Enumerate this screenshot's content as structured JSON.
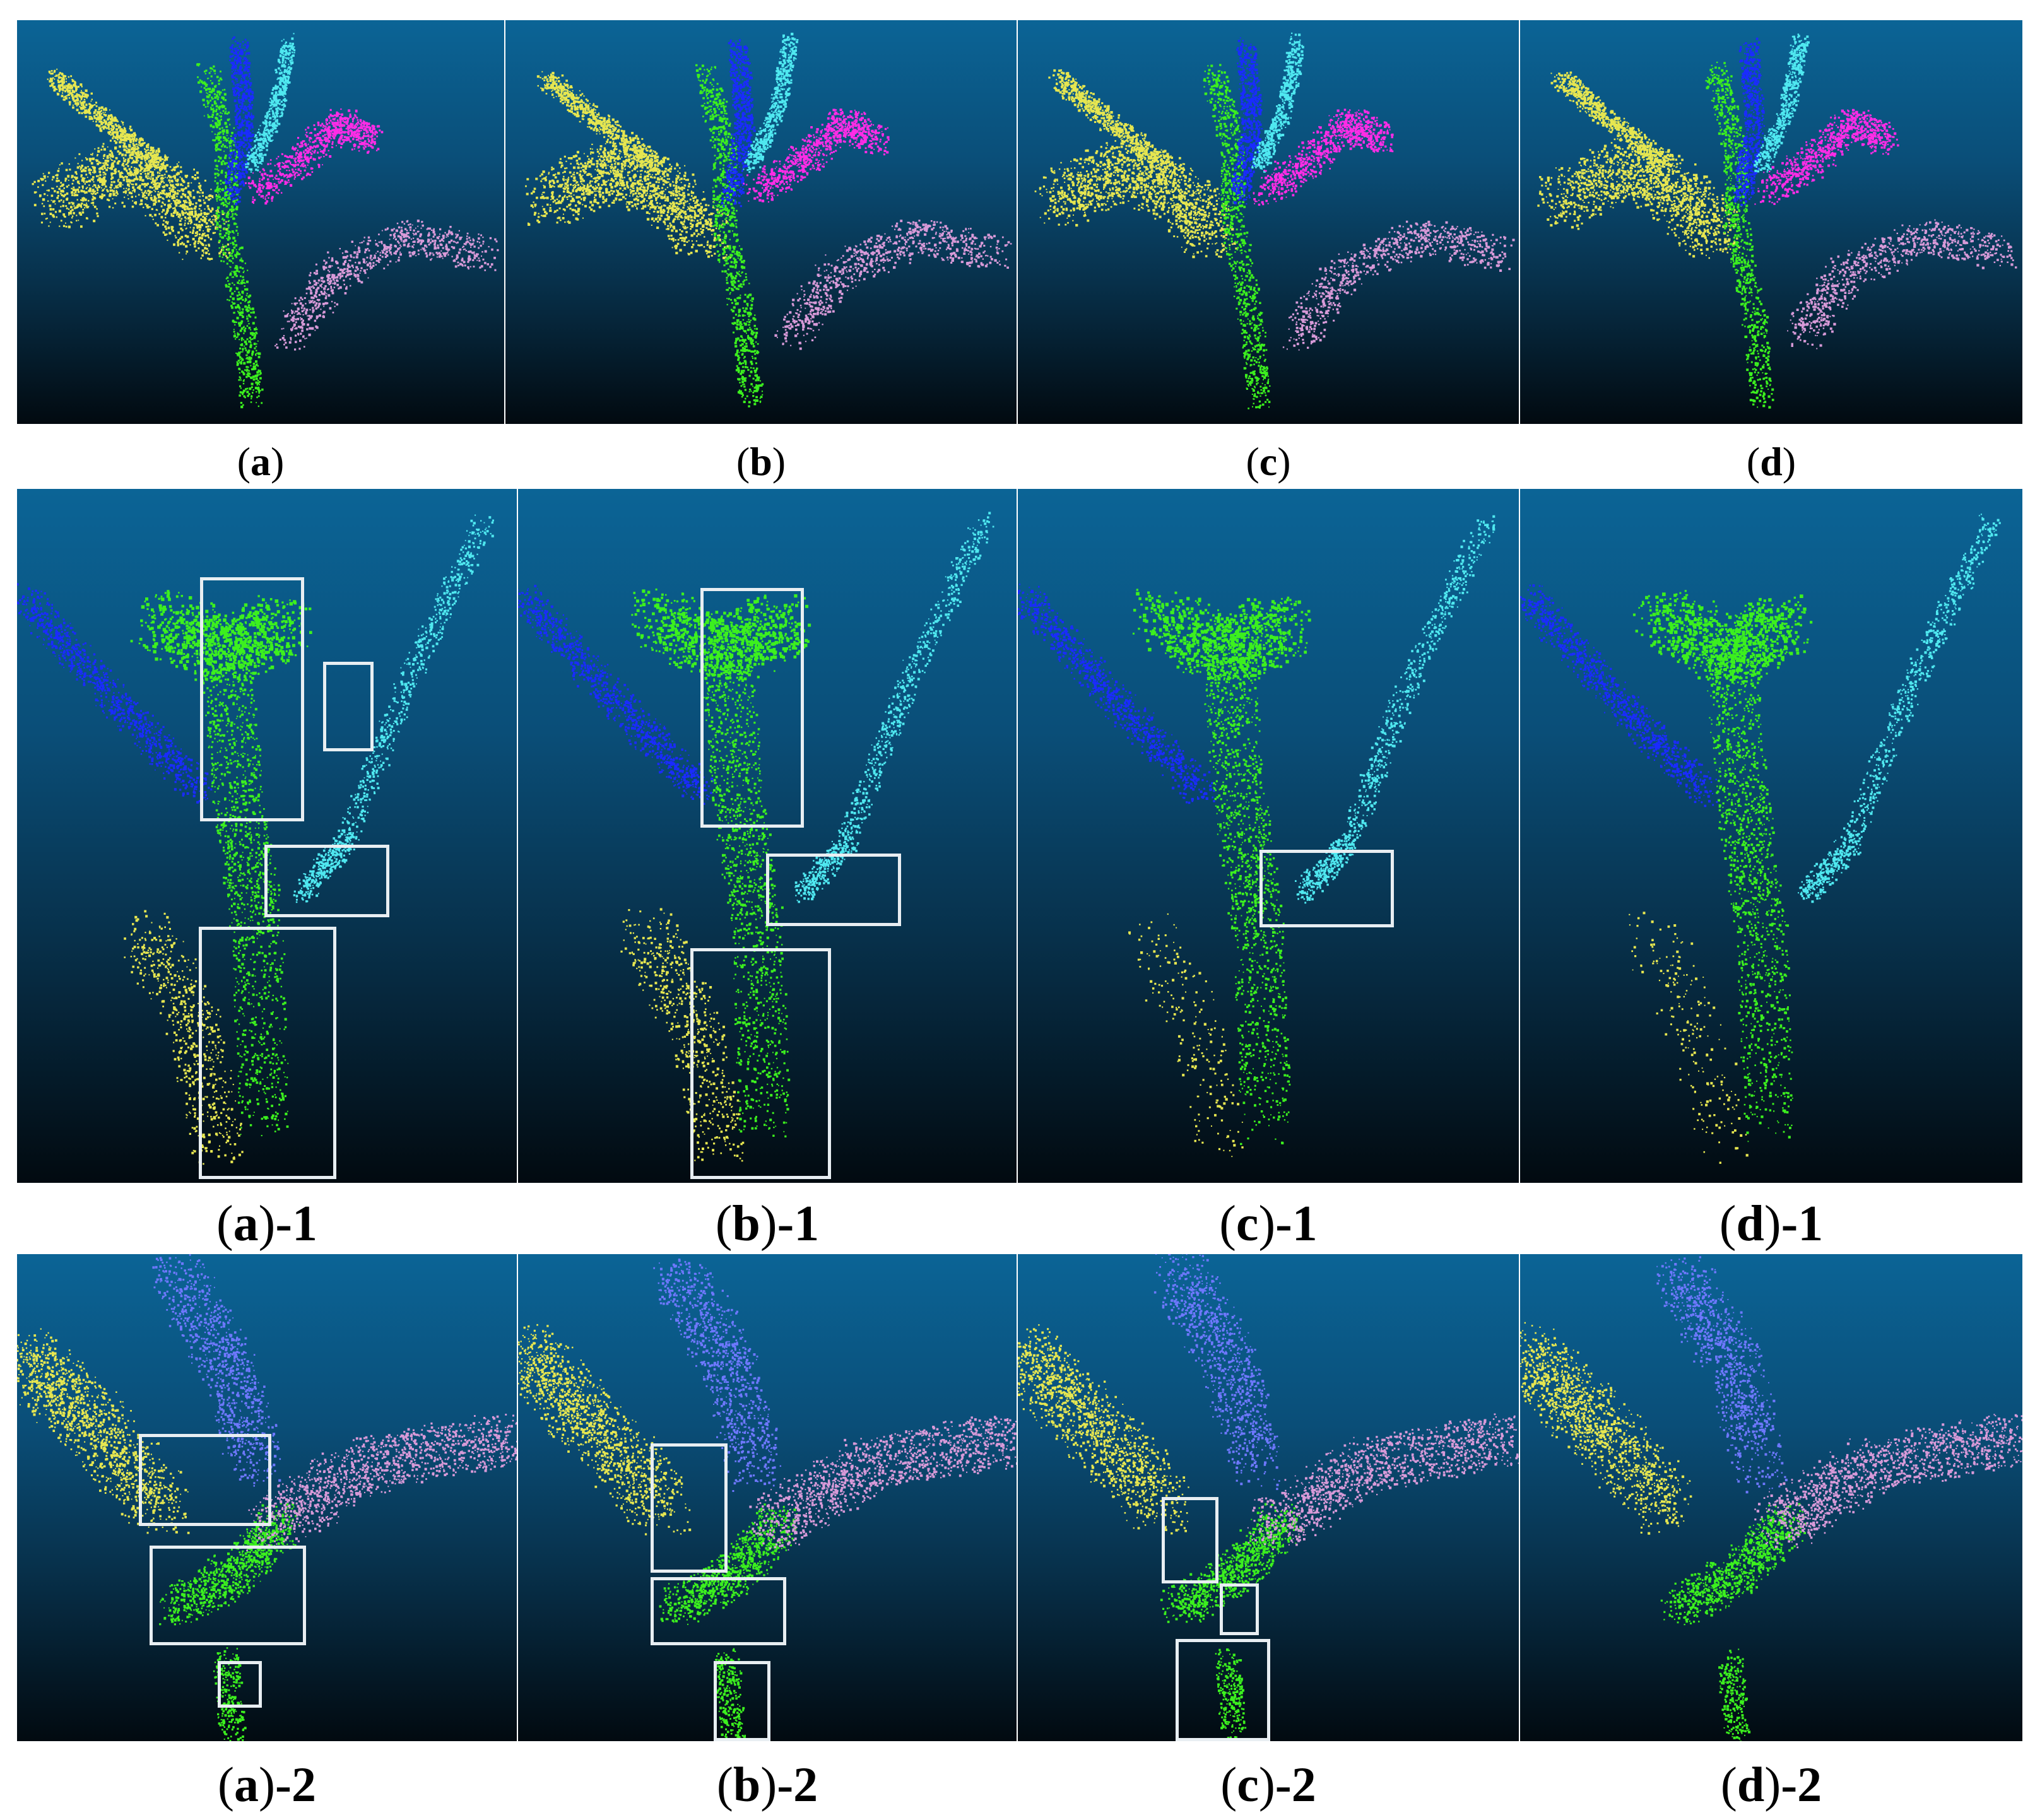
{
  "rows": [
    {
      "panels": [
        "a",
        "b",
        "c",
        "d"
      ],
      "captions": [
        {
          "letter": "a",
          "suffix": ""
        },
        {
          "letter": "b",
          "suffix": ""
        },
        {
          "letter": "c",
          "suffix": ""
        },
        {
          "letter": "d",
          "suffix": ""
        }
      ]
    },
    {
      "panels": [
        "a-1",
        "b-1",
        "c-1",
        "d-1"
      ],
      "captions": [
        {
          "letter": "a",
          "suffix": "-1"
        },
        {
          "letter": "b",
          "suffix": "-1"
        },
        {
          "letter": "c",
          "suffix": "-1"
        },
        {
          "letter": "d",
          "suffix": "-1"
        }
      ]
    },
    {
      "panels": [
        "a-2",
        "b-2",
        "c-2",
        "d-2"
      ],
      "captions": [
        {
          "letter": "a",
          "suffix": "-2"
        },
        {
          "letter": "b",
          "suffix": "-2"
        },
        {
          "letter": "c",
          "suffix": "-2"
        },
        {
          "letter": "d",
          "suffix": "-2"
        }
      ]
    }
  ],
  "colors": {
    "background_top": "#0b6496",
    "background_bottom": "#020a10",
    "highlight_box": "#e8eef2",
    "organ_blue": "#1a2bff",
    "organ_cyan": "#4fe8f0",
    "organ_green": "#3cf01e",
    "organ_yellow": "#e6e650",
    "organ_magenta": "#ff2ce6",
    "organ_pink": "#d89ad8",
    "organ_lightblue": "#6e78ff"
  }
}
